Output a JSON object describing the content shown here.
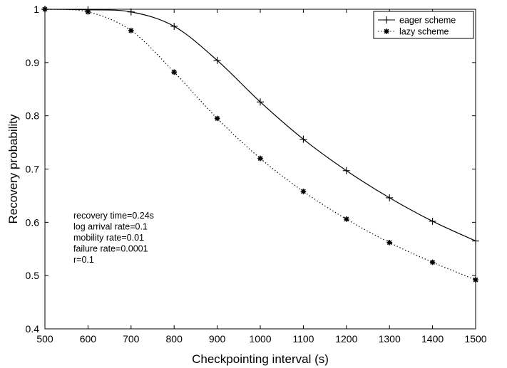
{
  "chart_data": {
    "type": "line",
    "title": "",
    "xlabel": "Checkpointing interval (s)",
    "ylabel": "Recovery probability",
    "xlim": [
      500,
      1500
    ],
    "ylim": [
      0.4,
      1.0
    ],
    "xticks": [
      500,
      600,
      700,
      800,
      900,
      1000,
      1100,
      1200,
      1300,
      1400,
      1500
    ],
    "yticks": [
      0.4,
      0.5,
      0.6,
      0.7,
      0.8,
      0.9,
      1.0
    ],
    "ytick_labels": [
      "0.4",
      "0.5",
      "0.6",
      "0.7",
      "0.8",
      "0.9",
      "1"
    ],
    "grid": false,
    "legend_position": "top-right",
    "x": [
      500,
      600,
      700,
      800,
      900,
      1000,
      1100,
      1200,
      1300,
      1400,
      1500
    ],
    "series": [
      {
        "name": "eager scheme",
        "line_style": "solid",
        "marker": "plus",
        "color": "#000000",
        "values": [
          1.0,
          0.999,
          0.995,
          0.968,
          0.904,
          0.826,
          0.756,
          0.697,
          0.646,
          0.602,
          0.565
        ]
      },
      {
        "name": "lazy scheme",
        "line_style": "dotted",
        "marker": "asterisk",
        "color": "#000000",
        "values": [
          1.0,
          0.995,
          0.96,
          0.882,
          0.795,
          0.72,
          0.658,
          0.606,
          0.562,
          0.525,
          0.492
        ]
      }
    ],
    "annotations": [
      "recovery time=0.24s",
      "log arrival rate=0.1",
      "mobility rate=0.01",
      "failure rate=0.0001",
      "r=0.1"
    ]
  }
}
